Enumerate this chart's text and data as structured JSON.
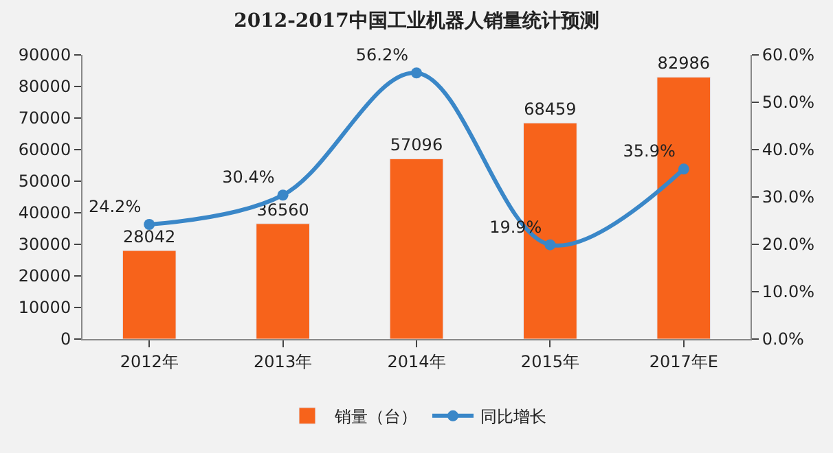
{
  "chart_data": {
    "type": "bar",
    "title": "2012-2017中国工业机器人销量统计预测",
    "categories": [
      "2012年",
      "2013年",
      "2014年",
      "2015年",
      "2017年E"
    ],
    "series": [
      {
        "name": "销量（台）",
        "color": "#f7631b",
        "values": [
          28042,
          36560,
          57096,
          68459,
          82986
        ],
        "value_labels": [
          "28042",
          "36560",
          "57096",
          "68459",
          "82986"
        ]
      },
      {
        "name": "同比增长",
        "type": "line",
        "axis": "y2",
        "color": "#3a87c8",
        "marker": "circle",
        "values": [
          24.2,
          30.4,
          56.2,
          19.9,
          35.9
        ],
        "value_labels": [
          "24.2%",
          "30.4%",
          "56.2%",
          "19.9%",
          "35.9%"
        ]
      }
    ],
    "ylim": [
      0,
      90000
    ],
    "yticks": [
      0,
      10000,
      20000,
      30000,
      40000,
      50000,
      60000,
      70000,
      80000,
      90000
    ],
    "y2lim": [
      0,
      60
    ],
    "y2ticks": [
      {
        "value": 0,
        "label": "0.0%"
      },
      {
        "value": 10,
        "label": "10.0%"
      },
      {
        "value": 20,
        "label": "20.0%"
      },
      {
        "value": 30,
        "label": "30.0%"
      },
      {
        "value": 40,
        "label": "40.0%"
      },
      {
        "value": 50,
        "label": "50.0%"
      },
      {
        "value": 60,
        "label": "60.0%"
      }
    ],
    "grid": false,
    "legend": "bottom"
  }
}
